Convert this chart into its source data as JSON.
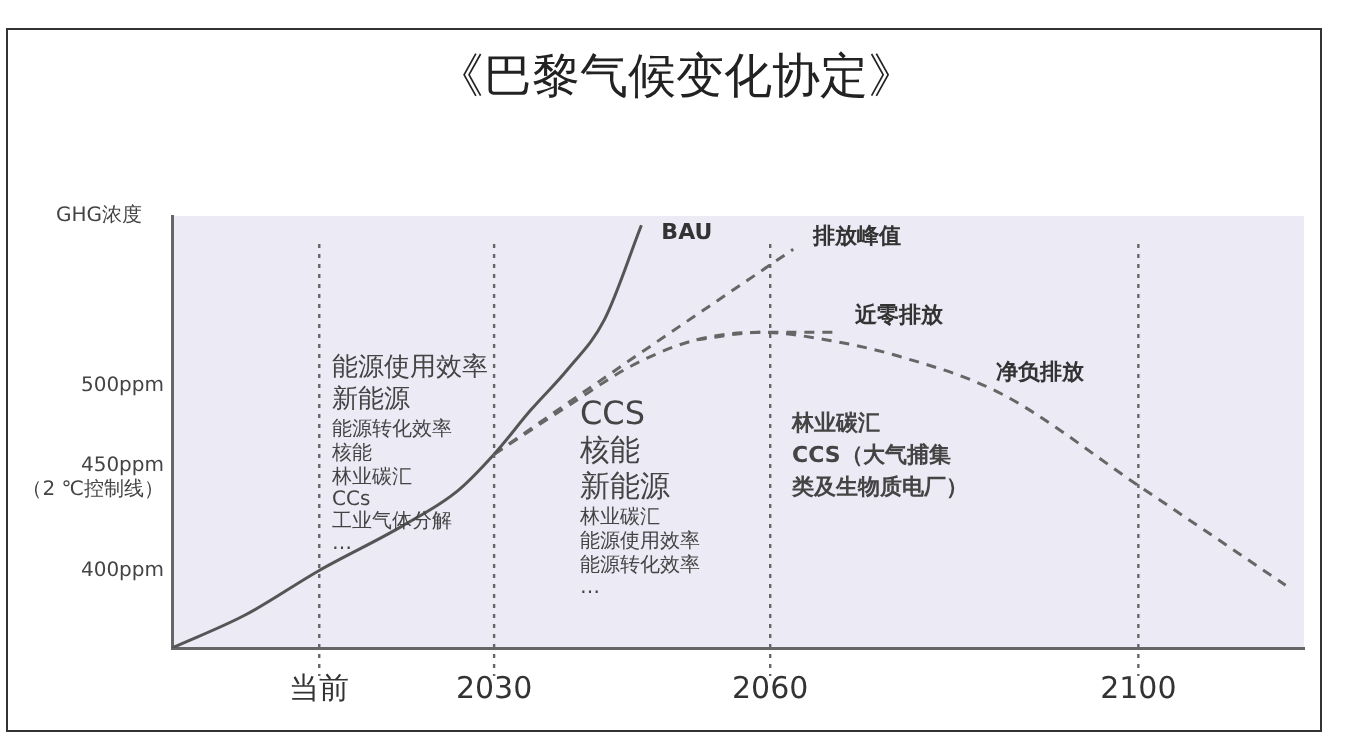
{
  "chart_data": {
    "type": "line",
    "title": "《巴黎气候变化协定》",
    "ylabel": "GHG浓度",
    "xlim": [
      1995,
      2118
    ],
    "xticks": [
      {
        "value": 2011,
        "label": "当前"
      },
      2030,
      2060,
      2100
    ],
    "ylim": [
      358,
      592
    ],
    "yticks": [
      {
        "value": 400,
        "label": "400ppm"
      },
      {
        "value": 450,
        "label": "450ppm\n（2 ℃控制线）"
      },
      {
        "value": 500,
        "label": "500ppm"
      }
    ],
    "grid": false,
    "legend": false,
    "marker": "none",
    "series": [
      {
        "name": "BAU",
        "color": "#555555",
        "line_style": "solid",
        "x": [
          1995,
          2003,
          2011,
          2020,
          2026,
          2030,
          2034,
          2038,
          2042,
          2046
        ],
        "values": [
          358,
          376,
          400,
          424,
          443,
          463,
          487,
          509,
          536,
          587
        ]
      },
      {
        "name": "排放峰值",
        "color": "#666666",
        "line_style": "dashed",
        "x": [
          2030,
          2044.5,
          2062.5
        ],
        "values": [
          463,
          513,
          574
        ]
      },
      {
        "name": "近零排放",
        "color": "#666666",
        "line_style": "dashed",
        "x": [
          2030,
          2038,
          2045,
          2052,
          2059,
          2067
        ],
        "values": [
          463,
          489,
          511,
          525,
          529,
          529
        ]
      },
      {
        "name": "净负排放",
        "color": "#666666",
        "line_style": "dashed",
        "x": [
          2052,
          2059,
          2066,
          2074,
          2085,
          2100,
          2116
        ],
        "values": [
          525,
          529,
          525,
          516,
          496,
          446,
          392
        ]
      }
    ],
    "ref_lines": [
      {
        "axis": "x",
        "value": 2011,
        "color": "#666666",
        "line_style": "dotted"
      },
      {
        "axis": "x",
        "value": 2030,
        "color": "#666666",
        "line_style": "dotted"
      },
      {
        "axis": "x",
        "value": 2060,
        "color": "#666666",
        "line_style": "dotted"
      },
      {
        "axis": "x",
        "value": 2100,
        "color": "#666666",
        "line_style": "dotted"
      }
    ],
    "annotations": [
      "能源使用效率",
      "新能源",
      "能源转化效率",
      "核能",
      "林业碳汇",
      "CCs",
      "工业气体分解",
      "…",
      "CCS",
      "核能",
      "新能源",
      "林业碳汇",
      "能源使用效率",
      "能源转化效率",
      "…",
      "林业碳汇",
      "CCS（大气捕集",
      "类及生物质电厂）"
    ]
  }
}
